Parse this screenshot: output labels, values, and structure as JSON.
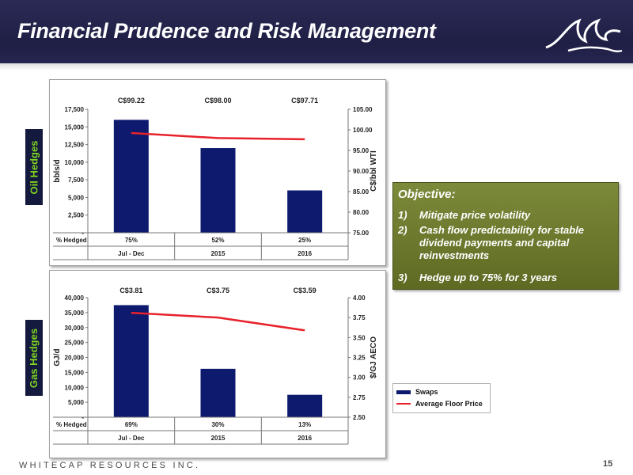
{
  "header": {
    "title": "Financial Prudence and Risk Management",
    "logo_icon": "wave-logo-icon",
    "background_color": "#1f1f45"
  },
  "side_tabs": {
    "oil": "Oil Hedges",
    "gas": "Gas Hedges",
    "text_color": "#7fd321"
  },
  "table_labels": {
    "row_label": "% Hedged"
  },
  "objective": {
    "title": "Objective:",
    "items": [
      {
        "num": "1)",
        "text": "Mitigate price volatility"
      },
      {
        "num": "2)",
        "text": "Cash flow predictability for stable dividend payments and capital reinvestments"
      },
      {
        "num": "3)",
        "text": "Hedge up to 75% for 3 years"
      }
    ],
    "background_color": "#6b7a2c"
  },
  "legend": {
    "items": [
      {
        "label": "Swaps",
        "symbol": "bar",
        "color": "#0d1a6e"
      },
      {
        "label": "Average Floor Price",
        "symbol": "line",
        "color": "#e8212b"
      }
    ]
  },
  "footer": {
    "company": "WHITECAP RESOURCES INC.",
    "page_number": "15"
  },
  "chart_data": [
    {
      "type": "bar",
      "categories": [
        "Jul - Dec",
        "2015",
        "2016"
      ],
      "ylabel": "bbls/d",
      "y2label": "C$/bbl WTI",
      "ylim": [
        0,
        17500
      ],
      "yticks": [
        "-",
        "2,500",
        "5,000",
        "7,500",
        "10,000",
        "12,500",
        "15,000",
        "17,500"
      ],
      "y2lim": [
        75,
        105
      ],
      "y2ticks": [
        "75.00",
        "80.00",
        "85.00",
        "90.00",
        "95.00",
        "100.00",
        "105.00"
      ],
      "series": [
        {
          "name": "Swaps",
          "type": "bar",
          "axis": "left",
          "values": [
            16000,
            12000,
            6000
          ],
          "color": "#0d1a6e"
        },
        {
          "name": "Average Floor Price",
          "type": "line",
          "axis": "right",
          "values": [
            99.22,
            98.0,
            97.71
          ],
          "color": "#e8212b"
        }
      ],
      "price_labels": [
        "C$99.22",
        "C$98.00",
        "C$97.71"
      ],
      "pct_hedged": [
        "75%",
        "52%",
        "25%"
      ],
      "grid": false
    },
    {
      "type": "bar",
      "categories": [
        "Jul - Dec",
        "2015",
        "2016"
      ],
      "ylabel": "GJ/d",
      "y2label": "$/GJ AECO",
      "ylim": [
        0,
        40000
      ],
      "yticks": [
        "-",
        "5,000",
        "10,000",
        "15,000",
        "20,000",
        "25,000",
        "30,000",
        "35,000",
        "40,000"
      ],
      "y2lim": [
        2.5,
        4.0
      ],
      "y2ticks": [
        "2.50",
        "2.75",
        "3.00",
        "3.25",
        "3.50",
        "3.75",
        "4.00"
      ],
      "series": [
        {
          "name": "Swaps",
          "type": "bar",
          "axis": "left",
          "values": [
            37500,
            16200,
            7500
          ],
          "color": "#0d1a6e"
        },
        {
          "name": "Average Floor Price",
          "type": "line",
          "axis": "right",
          "values": [
            3.81,
            3.75,
            3.59
          ],
          "color": "#e8212b"
        }
      ],
      "price_labels": [
        "C$3.81",
        "C$3.75",
        "C$3.59"
      ],
      "pct_hedged": [
        "69%",
        "30%",
        "13%"
      ],
      "grid": false,
      "legend_position": "right-outside"
    }
  ]
}
